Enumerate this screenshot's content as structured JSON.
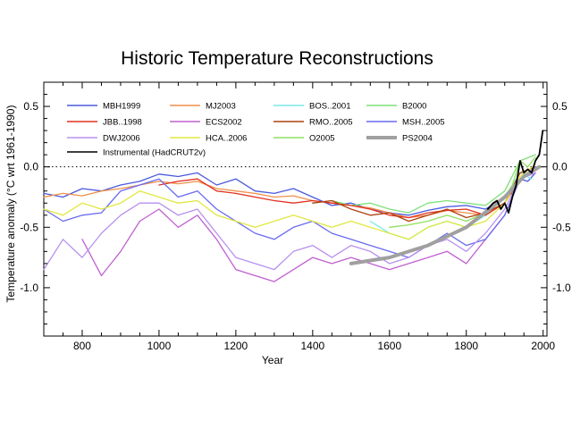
{
  "chart_data": {
    "type": "line",
    "title": "Historic Temperature Reconstructions",
    "xlabel": "Year",
    "ylabel": "Temperature anomaly  (°C wrt 1961-1990)",
    "xlim": [
      700,
      2010
    ],
    "ylim": [
      -1.4,
      0.7
    ],
    "xticks": [
      800,
      1000,
      1200,
      1400,
      1600,
      1800,
      2000
    ],
    "yticks": [
      -1.0,
      -0.5,
      0.0,
      0.5
    ],
    "ytick_labels": [
      "-1.0",
      "-0.5",
      "0.0",
      "0.5"
    ],
    "zero_line": "dotted",
    "grid": false,
    "legend_position": "top-left",
    "series": [
      {
        "name": "MBH1999",
        "color": "#4a5ae0",
        "x": [
          700,
          750,
          800,
          850,
          900,
          950,
          1000,
          1050,
          1100,
          1150,
          1200,
          1250,
          1300,
          1350,
          1400,
          1450,
          1500,
          1550,
          1600,
          1650,
          1700,
          1750,
          1800,
          1850,
          1900,
          1920,
          1940,
          1960,
          1980
        ],
        "y": [
          -0.22,
          -0.25,
          -0.18,
          -0.2,
          -0.15,
          -0.12,
          -0.06,
          -0.08,
          -0.05,
          -0.15,
          -0.1,
          -0.2,
          -0.22,
          -0.18,
          -0.25,
          -0.32,
          -0.3,
          -0.35,
          -0.38,
          -0.4,
          -0.36,
          -0.33,
          -0.32,
          -0.35,
          -0.25,
          -0.22,
          -0.1,
          -0.12,
          -0.05
        ]
      },
      {
        "name": "MJ2003",
        "color": "#f0904a",
        "x": [
          700,
          750,
          800,
          850,
          900,
          950,
          1000,
          1050,
          1100,
          1150,
          1200,
          1250,
          1300,
          1350,
          1400,
          1450,
          1500,
          1550,
          1600,
          1650,
          1700,
          1750,
          1800,
          1850,
          1900,
          1940,
          1980
        ],
        "y": [
          -0.25,
          -0.22,
          -0.24,
          -0.2,
          -0.18,
          -0.15,
          -0.12,
          -0.14,
          -0.12,
          -0.18,
          -0.2,
          -0.22,
          -0.25,
          -0.24,
          -0.28,
          -0.3,
          -0.32,
          -0.34,
          -0.38,
          -0.42,
          -0.4,
          -0.36,
          -0.38,
          -0.4,
          -0.3,
          -0.1,
          0.0
        ]
      },
      {
        "name": "BOS..2001",
        "color": "#7ae8e8",
        "x": [
          1550,
          1600,
          1650,
          1700,
          1750,
          1800,
          1850,
          1900,
          1940,
          1970
        ],
        "y": [
          -0.45,
          -0.55,
          -0.6,
          -0.5,
          -0.45,
          -0.5,
          -0.4,
          -0.25,
          -0.05,
          -0.1
        ]
      },
      {
        "name": "B2000",
        "color": "#7ee07a",
        "x": [
          1400,
          1450,
          1500,
          1550,
          1600,
          1650,
          1700,
          1750,
          1800,
          1850,
          1900,
          1940,
          1980
        ],
        "y": [
          -0.3,
          -0.28,
          -0.32,
          -0.3,
          -0.35,
          -0.38,
          -0.3,
          -0.28,
          -0.3,
          -0.32,
          -0.2,
          0.05,
          0.1
        ]
      },
      {
        "name": "JBB..1998",
        "color": "#e03020",
        "x": [
          1000,
          1050,
          1100,
          1150,
          1200,
          1250,
          1300,
          1350,
          1400,
          1450,
          1500,
          1550,
          1600,
          1650,
          1700,
          1750,
          1800,
          1850,
          1900,
          1940,
          1980
        ],
        "y": [
          -0.15,
          -0.12,
          -0.1,
          -0.2,
          -0.22,
          -0.25,
          -0.28,
          -0.3,
          -0.28,
          -0.3,
          -0.32,
          -0.35,
          -0.4,
          -0.42,
          -0.38,
          -0.36,
          -0.35,
          -0.4,
          -0.3,
          -0.1,
          0.0
        ]
      },
      {
        "name": "ECS2002",
        "color": "#c060d0",
        "x": [
          800,
          850,
          900,
          950,
          1000,
          1050,
          1100,
          1150,
          1200,
          1250,
          1300,
          1350,
          1400,
          1450,
          1500,
          1550,
          1600,
          1650,
          1700,
          1750,
          1800,
          1850,
          1900,
          1940,
          1980
        ],
        "y": [
          -0.6,
          -0.9,
          -0.7,
          -0.45,
          -0.35,
          -0.5,
          -0.4,
          -0.6,
          -0.85,
          -0.9,
          -0.95,
          -0.85,
          -0.75,
          -0.8,
          -0.75,
          -0.8,
          -0.85,
          -0.8,
          -0.75,
          -0.7,
          -0.8,
          -0.6,
          -0.4,
          -0.1,
          -0.05
        ]
      },
      {
        "name": "RMO..2005",
        "color": "#b04010",
        "x": [
          1400,
          1450,
          1500,
          1550,
          1600,
          1650,
          1700,
          1750,
          1800,
          1850,
          1900,
          1940,
          1980
        ],
        "y": [
          -0.3,
          -0.28,
          -0.35,
          -0.4,
          -0.38,
          -0.45,
          -0.4,
          -0.35,
          -0.42,
          -0.38,
          -0.3,
          -0.05,
          0.0
        ]
      },
      {
        "name": "MSH..2005",
        "color": "#6a6af0",
        "x": [
          700,
          750,
          800,
          850,
          900,
          950,
          1000,
          1050,
          1100,
          1150,
          1200,
          1250,
          1300,
          1350,
          1400,
          1450,
          1500,
          1550,
          1600,
          1650,
          1700,
          1750,
          1800,
          1850,
          1900,
          1940,
          1980
        ],
        "y": [
          -0.35,
          -0.45,
          -0.4,
          -0.38,
          -0.2,
          -0.15,
          -0.1,
          -0.25,
          -0.2,
          -0.35,
          -0.45,
          -0.55,
          -0.6,
          -0.5,
          -0.45,
          -0.55,
          -0.6,
          -0.65,
          -0.7,
          -0.75,
          -0.65,
          -0.55,
          -0.65,
          -0.6,
          -0.4,
          -0.1,
          0.0
        ]
      },
      {
        "name": "DWJ2006",
        "color": "#b890ee",
        "x": [
          700,
          750,
          800,
          850,
          900,
          950,
          1000,
          1050,
          1100,
          1150,
          1200,
          1250,
          1300,
          1350,
          1400,
          1450,
          1500,
          1550,
          1600,
          1650,
          1700,
          1750,
          1800,
          1850,
          1900,
          1940,
          1980
        ],
        "y": [
          -0.85,
          -0.6,
          -0.75,
          -0.55,
          -0.4,
          -0.3,
          -0.3,
          -0.4,
          -0.35,
          -0.55,
          -0.75,
          -0.8,
          -0.85,
          -0.7,
          -0.65,
          -0.75,
          -0.65,
          -0.7,
          -0.8,
          -0.75,
          -0.65,
          -0.6,
          -0.7,
          -0.55,
          -0.35,
          -0.1,
          -0.05
        ]
      },
      {
        "name": "HCA..2006",
        "color": "#e0e840",
        "x": [
          700,
          750,
          800,
          850,
          900,
          950,
          1000,
          1050,
          1100,
          1150,
          1200,
          1250,
          1300,
          1350,
          1400,
          1450,
          1500,
          1550,
          1600,
          1650,
          1700,
          1750,
          1800,
          1850,
          1900,
          1940,
          1980
        ],
        "y": [
          -0.35,
          -0.4,
          -0.3,
          -0.35,
          -0.3,
          -0.2,
          -0.25,
          -0.3,
          -0.28,
          -0.4,
          -0.45,
          -0.5,
          -0.45,
          -0.4,
          -0.45,
          -0.5,
          -0.45,
          -0.5,
          -0.55,
          -0.6,
          -0.5,
          -0.45,
          -0.5,
          -0.45,
          -0.3,
          -0.08,
          0.02
        ]
      },
      {
        "name": "O2005",
        "color": "#90e060",
        "x": [
          1600,
          1650,
          1700,
          1750,
          1800,
          1850,
          1900,
          1920,
          1940,
          1960,
          1980
        ],
        "y": [
          -0.5,
          -0.48,
          -0.45,
          -0.4,
          -0.45,
          -0.38,
          -0.25,
          -0.15,
          0.05,
          0.0,
          0.08
        ]
      },
      {
        "name": "PS2004",
        "color": "#a0a0a0",
        "x": [
          1500,
          1600,
          1700,
          1800,
          1900,
          1950,
          1990
        ],
        "y": [
          -0.8,
          -0.75,
          -0.65,
          -0.5,
          -0.25,
          -0.08,
          0.0
        ]
      },
      {
        "name": "Instrumental (HadCRUT2v)",
        "color": "#000000",
        "x": [
          1856,
          1870,
          1880,
          1890,
          1900,
          1910,
          1920,
          1930,
          1940,
          1950,
          1960,
          1970,
          1980,
          1990,
          1999
        ],
        "y": [
          -0.35,
          -0.3,
          -0.28,
          -0.35,
          -0.3,
          -0.38,
          -0.25,
          -0.15,
          0.05,
          -0.05,
          -0.02,
          -0.05,
          0.05,
          0.1,
          0.3
        ]
      }
    ]
  }
}
